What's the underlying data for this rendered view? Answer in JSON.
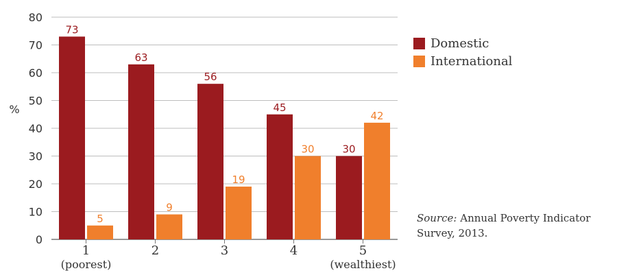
{
  "chart_data": {
    "type": "bar",
    "categories": [
      "1",
      "2",
      "3",
      "4",
      "5"
    ],
    "category_sublabels": [
      "(poorest)",
      "",
      "",
      "",
      "(wealthiest)"
    ],
    "series": [
      {
        "name": "Domestic",
        "values": [
          73,
          63,
          56,
          45,
          30
        ],
        "color": "#9b1b1f"
      },
      {
        "name": "International",
        "values": [
          5,
          9,
          19,
          30,
          42
        ],
        "color": "#f07f2c"
      }
    ],
    "title": "",
    "xlabel": "",
    "ylabel": "%",
    "ylim": [
      0,
      80
    ],
    "yticks": [
      0,
      10,
      20,
      30,
      40,
      50,
      60,
      70,
      80
    ],
    "grid": true,
    "legend_position": "right"
  },
  "source": {
    "prefix": "Source:",
    "text": " Annual Poverty Indicator Survey, 2013."
  }
}
